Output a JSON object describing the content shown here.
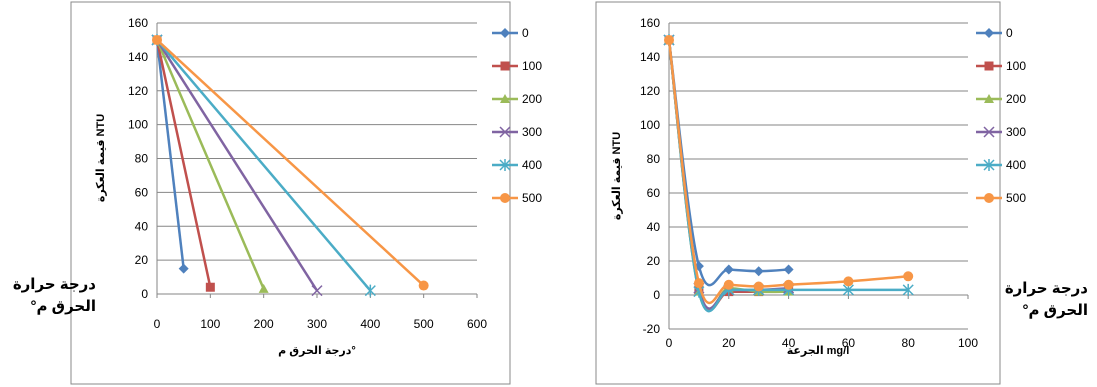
{
  "side_labels": {
    "left": [
      "درجة حرارة",
      "الحرق م°"
    ],
    "right": [
      "درجة حرارة",
      "الحرق م°"
    ]
  },
  "chart_data": [
    {
      "type": "line",
      "xlabel": "درجة الحرق م°",
      "ylabel": "قيمة العكرة NTU",
      "xlim": [
        0,
        600
      ],
      "ylim": [
        0,
        160
      ],
      "xticks": [
        0,
        100,
        200,
        300,
        400,
        500,
        600
      ],
      "yticks": [
        0,
        20,
        40,
        60,
        80,
        100,
        120,
        140,
        160
      ],
      "grid": "horizontal",
      "legend_position": "right",
      "series": [
        {
          "name": "0",
          "color": "#4F81BD",
          "marker": "diamond",
          "points": [
            [
              0,
              150
            ],
            [
              50,
              15
            ]
          ]
        },
        {
          "name": "100",
          "color": "#C0504D",
          "marker": "square",
          "points": [
            [
              0,
              150
            ],
            [
              100,
              4
            ]
          ]
        },
        {
          "name": "200",
          "color": "#9BBB59",
          "marker": "triangle",
          "points": [
            [
              0,
              150
            ],
            [
              200,
              3
            ]
          ]
        },
        {
          "name": "300",
          "color": "#8064A2",
          "marker": "x",
          "points": [
            [
              0,
              150
            ],
            [
              300,
              2
            ]
          ]
        },
        {
          "name": "400",
          "color": "#4BACC6",
          "marker": "asterisk",
          "points": [
            [
              0,
              150
            ],
            [
              400,
              2
            ]
          ]
        },
        {
          "name": "500",
          "color": "#F79646",
          "marker": "circle",
          "points": [
            [
              0,
              150
            ],
            [
              500,
              5
            ]
          ]
        }
      ]
    },
    {
      "type": "line",
      "xlabel": "الجرعة mg/l",
      "ylabel": "قيمة العكرة NTU",
      "xlim": [
        0,
        100
      ],
      "ylim": [
        -20,
        160
      ],
      "xticks": [
        0,
        20,
        40,
        60,
        80,
        100
      ],
      "yticks": [
        -20,
        0,
        20,
        40,
        60,
        80,
        100,
        120,
        140,
        160
      ],
      "grid": "horizontal",
      "legend_position": "right",
      "series": [
        {
          "name": "0",
          "color": "#4F81BD",
          "marker": "diamond",
          "points": [
            [
              0,
              150
            ],
            [
              10,
              17
            ],
            [
              20,
              15
            ],
            [
              30,
              14
            ],
            [
              40,
              15
            ]
          ]
        },
        {
          "name": "100",
          "color": "#C0504D",
          "marker": "square",
          "points": [
            [
              0,
              150
            ],
            [
              10,
              3
            ],
            [
              20,
              2
            ],
            [
              30,
              2
            ],
            [
              40,
              3
            ]
          ]
        },
        {
          "name": "200",
          "color": "#9BBB59",
          "marker": "triangle",
          "points": [
            [
              0,
              150
            ],
            [
              10,
              2
            ],
            [
              20,
              4
            ],
            [
              30,
              2
            ],
            [
              40,
              2
            ]
          ]
        },
        {
          "name": "300",
          "color": "#8064A2",
          "marker": "x",
          "points": [
            [
              0,
              150
            ],
            [
              10,
              4
            ],
            [
              20,
              3
            ],
            [
              30,
              3
            ],
            [
              40,
              4
            ]
          ]
        },
        {
          "name": "400",
          "color": "#4BACC6",
          "marker": "asterisk",
          "points": [
            [
              0,
              150
            ],
            [
              10,
              2
            ],
            [
              20,
              3
            ],
            [
              30,
              3
            ],
            [
              40,
              3
            ],
            [
              60,
              3
            ],
            [
              80,
              3
            ]
          ]
        },
        {
          "name": "500",
          "color": "#F79646",
          "marker": "circle",
          "points": [
            [
              0,
              150
            ],
            [
              10,
              7
            ],
            [
              20,
              6
            ],
            [
              30,
              5
            ],
            [
              40,
              6
            ],
            [
              60,
              8
            ],
            [
              80,
              11
            ]
          ]
        }
      ]
    }
  ]
}
